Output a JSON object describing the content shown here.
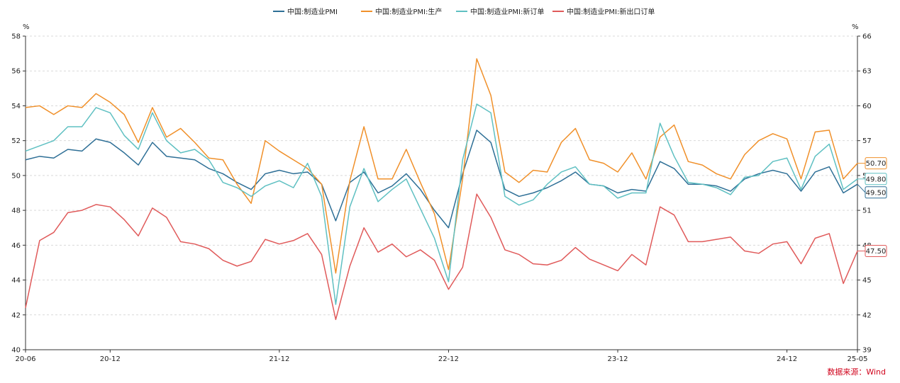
{
  "chart_data": {
    "type": "line",
    "title": "",
    "left_unit": "%",
    "right_unit": "%",
    "source": "数据来源：Wind",
    "ylim_left": [
      40,
      58
    ],
    "yticks_left": [
      "40",
      "42",
      "44",
      "46",
      "48",
      "50",
      "52",
      "54",
      "56",
      "58"
    ],
    "ylim_right": [
      39,
      66
    ],
    "yticks_right": [
      "39",
      "42",
      "45",
      "48",
      "51",
      "54",
      "57",
      "60",
      "63",
      "66"
    ],
    "xtick_labels": [
      {
        "index": 0,
        "label": "20-06"
      },
      {
        "index": 6,
        "label": "20-12"
      },
      {
        "index": 18,
        "label": "21-12"
      },
      {
        "index": 30,
        "label": "22-12"
      },
      {
        "index": 42,
        "label": "23-12"
      },
      {
        "index": 54,
        "label": "24-12"
      },
      {
        "index": 59,
        "label": "25-05"
      }
    ],
    "categories": [
      "20-06",
      "20-07",
      "20-08",
      "20-09",
      "20-10",
      "20-11",
      "20-12",
      "21-01",
      "21-02",
      "21-03",
      "21-04",
      "21-05",
      "21-06",
      "21-07",
      "21-08",
      "21-09",
      "21-10",
      "21-11",
      "21-12",
      "22-01",
      "22-02",
      "22-03",
      "22-04",
      "22-05",
      "22-06",
      "22-07",
      "22-08",
      "22-09",
      "22-10",
      "22-11",
      "22-12",
      "23-01",
      "23-02",
      "23-03",
      "23-04",
      "23-05",
      "23-06",
      "23-07",
      "23-08",
      "23-09",
      "23-10",
      "23-11",
      "23-12",
      "24-01",
      "24-02",
      "24-03",
      "24-04",
      "24-05",
      "24-06",
      "24-07",
      "24-08",
      "24-09",
      "24-10",
      "24-11",
      "24-12",
      "25-01",
      "25-02",
      "25-03",
      "25-04",
      "25-05"
    ],
    "grid": true,
    "legend_position": "top",
    "series": [
      {
        "name": "中国:制造业PMI",
        "axis": "left",
        "color": "#2e6f96",
        "end_label": "49.50",
        "values": [
          50.9,
          51.1,
          51.0,
          51.5,
          51.4,
          52.1,
          51.9,
          51.3,
          50.6,
          51.9,
          51.1,
          51.0,
          50.9,
          50.4,
          50.1,
          49.6,
          49.2,
          50.1,
          50.3,
          50.1,
          50.2,
          49.5,
          47.4,
          49.6,
          50.2,
          49.0,
          49.4,
          50.1,
          49.2,
          48.0,
          47.0,
          50.1,
          52.6,
          51.9,
          49.2,
          48.8,
          49.0,
          49.3,
          49.7,
          50.2,
          49.5,
          49.4,
          49.0,
          49.2,
          49.1,
          50.8,
          50.4,
          49.5,
          49.5,
          49.4,
          49.1,
          49.8,
          50.1,
          50.3,
          50.1,
          49.1,
          50.2,
          50.5,
          49.0,
          49.5
        ]
      },
      {
        "name": "中国:制造业PMI:生产",
        "axis": "left",
        "color": "#f0902a",
        "end_label": "50.70",
        "values": [
          53.9,
          54.0,
          53.5,
          54.0,
          53.9,
          54.7,
          54.2,
          53.5,
          51.9,
          53.9,
          52.2,
          52.7,
          51.9,
          51.0,
          50.9,
          49.5,
          48.4,
          52.0,
          51.4,
          50.9,
          50.4,
          49.5,
          44.4,
          49.7,
          52.8,
          49.8,
          49.8,
          51.5,
          49.6,
          47.8,
          44.6,
          49.8,
          56.7,
          54.6,
          50.2,
          49.6,
          50.3,
          50.2,
          51.9,
          52.7,
          50.9,
          50.7,
          50.2,
          51.3,
          49.8,
          52.2,
          52.9,
          50.8,
          50.6,
          50.1,
          49.8,
          51.2,
          52.0,
          52.4,
          52.1,
          49.8,
          52.5,
          52.6,
          49.8,
          50.7
        ]
      },
      {
        "name": "中国:制造业PMI:新订单",
        "axis": "left",
        "color": "#5fc0c2",
        "end_label": "49.80",
        "values": [
          51.4,
          51.7,
          52.0,
          52.8,
          52.8,
          53.9,
          53.6,
          52.3,
          51.5,
          53.6,
          52.0,
          51.3,
          51.5,
          50.9,
          49.6,
          49.3,
          48.8,
          49.4,
          49.7,
          49.3,
          50.7,
          48.8,
          42.6,
          48.2,
          50.4,
          48.5,
          49.2,
          49.8,
          48.1,
          46.4,
          43.9,
          50.9,
          54.1,
          53.6,
          48.8,
          48.3,
          48.6,
          49.5,
          50.2,
          50.5,
          49.5,
          49.4,
          48.7,
          49.0,
          49.0,
          53.0,
          51.1,
          49.6,
          49.5,
          49.3,
          48.9,
          49.9,
          50.0,
          50.8,
          51.0,
          49.2,
          51.1,
          51.8,
          49.2,
          49.8
        ]
      },
      {
        "name": "中国:制造业PMI:新出口订单",
        "axis": "right",
        "color": "#e05a5a",
        "end_label": "47.50",
        "values": [
          42.6,
          48.4,
          49.1,
          50.8,
          51.0,
          51.5,
          51.3,
          50.2,
          48.8,
          51.2,
          50.4,
          48.3,
          48.1,
          47.7,
          46.7,
          46.2,
          46.6,
          48.5,
          48.1,
          48.4,
          49.0,
          47.2,
          41.6,
          46.2,
          49.5,
          47.4,
          48.1,
          47.0,
          47.6,
          46.7,
          44.2,
          46.1,
          52.4,
          50.4,
          47.6,
          47.2,
          46.4,
          46.3,
          46.7,
          47.8,
          46.8,
          46.3,
          45.8,
          47.2,
          46.3,
          51.3,
          50.6,
          48.3,
          48.3,
          48.5,
          48.7,
          47.5,
          47.3,
          48.1,
          48.3,
          46.4,
          48.6,
          49.0,
          44.7,
          47.5
        ]
      }
    ]
  }
}
